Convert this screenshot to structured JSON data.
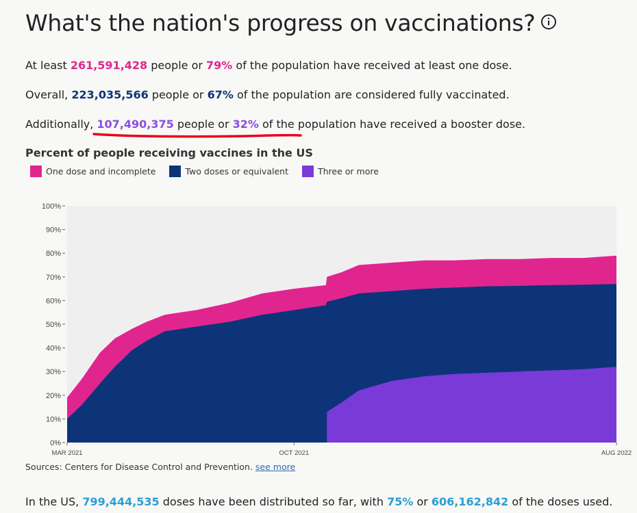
{
  "header": {
    "title": "What's the nation's progress on vaccinations?",
    "info_icon": "info-circle-icon"
  },
  "stats": {
    "one_dose": {
      "prefix": "At least ",
      "count": "261,591,428",
      "middle": " people or ",
      "percent": "79%",
      "suffix": " of the population have received at least one dose."
    },
    "fully": {
      "prefix": "Overall, ",
      "count": "223,035,566",
      "middle": " people or ",
      "percent": "67%",
      "suffix": " of the population are considered fully vaccinated."
    },
    "booster": {
      "prefix": "Additionally, ",
      "count": "107,490,375",
      "middle": " people or ",
      "percent": "32%",
      "suffix": " of the population have received a booster dose."
    }
  },
  "colors": {
    "one_dose": "#e0258f",
    "two_doses": "#0d3479",
    "three_plus": "#7a3ad8",
    "highlight_underline": "#e8001c",
    "plot_bg": "#efefef"
  },
  "chart_data": {
    "type": "area",
    "title": "Percent of people receiving vaccines in the US",
    "legend_position": "top-left",
    "grid": false,
    "ylim": [
      0,
      100
    ],
    "y_ticks": [
      "0%",
      "10%",
      "20%",
      "30%",
      "40%",
      "50%",
      "60%",
      "70%",
      "80%",
      "90%",
      "100%"
    ],
    "x_tick_labels": [
      "MAR 2021",
      "OCT 2021",
      "AUG 2022"
    ],
    "x": [
      "2021-03-01",
      "2021-03-15",
      "2021-04-01",
      "2021-04-15",
      "2021-05-01",
      "2021-05-15",
      "2021-06-01",
      "2021-07-01",
      "2021-08-01",
      "2021-09-01",
      "2021-10-01",
      "2021-10-31",
      "2021-11-01",
      "2021-11-15",
      "2021-12-01",
      "2022-01-01",
      "2022-02-01",
      "2022-03-01",
      "2022-04-01",
      "2022-05-01",
      "2022-06-01",
      "2022-07-01",
      "2022-08-01"
    ],
    "series": [
      {
        "name": "One dose and incomplete",
        "values": [
          19,
          27,
          38,
          44,
          48,
          51,
          54,
          56,
          59,
          63,
          65,
          66.5,
          70,
          72,
          75,
          76,
          77,
          77,
          77.5,
          77.5,
          78,
          78,
          79
        ]
      },
      {
        "name": "Two doses or equivalent",
        "values": [
          10,
          16,
          25,
          32,
          39,
          43,
          47,
          49,
          51,
          54,
          56,
          58,
          59.5,
          61,
          63,
          64,
          65,
          65.5,
          66,
          66.2,
          66.5,
          66.7,
          67
        ]
      },
      {
        "name": "Three or more",
        "values": [
          0,
          0,
          0,
          0,
          0,
          0,
          0,
          0,
          0,
          0,
          0,
          0,
          13,
          17,
          22,
          26,
          28,
          29,
          29.5,
          30,
          30.5,
          31,
          32
        ]
      }
    ]
  },
  "sources": {
    "label": "Sources: Centers for Disease Control and Prevention.",
    "link": "see more"
  },
  "doses": {
    "prefix": "In the US, ",
    "distributed": "799,444,535",
    "middle": " doses have been distributed so far, with ",
    "percent_used": "75%",
    "or": " or ",
    "used": "606,162,842",
    "suffix": " of the doses used."
  }
}
